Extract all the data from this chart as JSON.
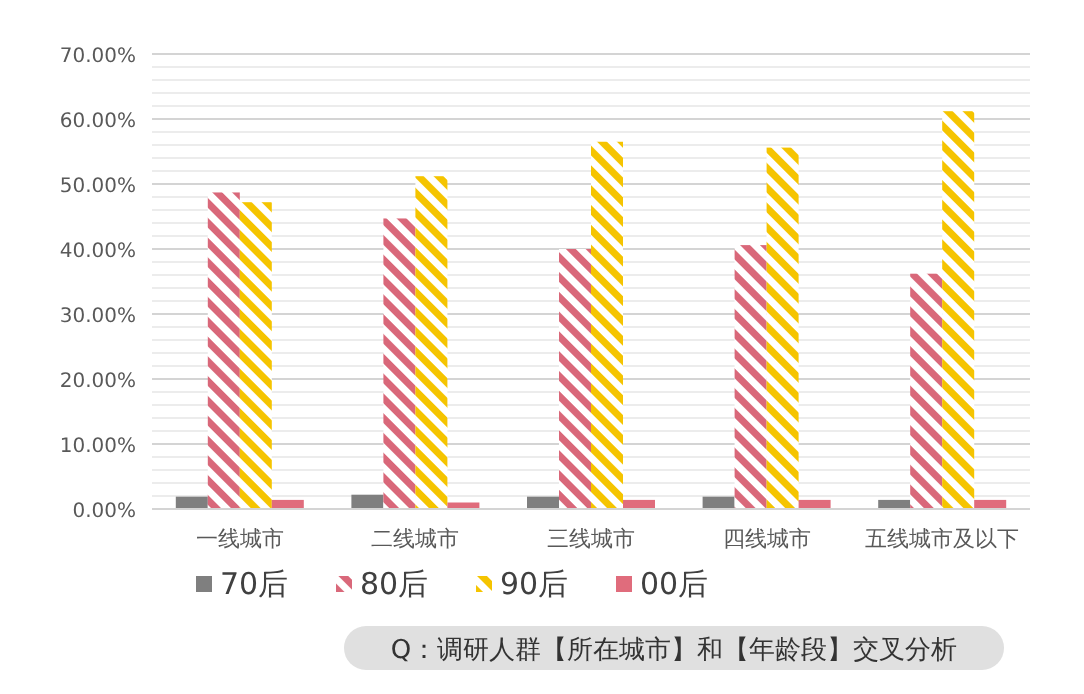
{
  "chart_data": {
    "type": "bar",
    "categories": [
      "一线城市",
      "二线城市",
      "三线城市",
      "四线城市",
      "五线城市及以下"
    ],
    "series": [
      {
        "name": "70后",
        "color": "#7f7f7f",
        "values": [
          1.9,
          2.2,
          1.9,
          1.9,
          1.4
        ]
      },
      {
        "name": "80后",
        "color": "#d9687a",
        "values": [
          48.7,
          44.7,
          40.0,
          40.6,
          36.2
        ]
      },
      {
        "name": "90后",
        "color": "#f5c400",
        "values": [
          47.2,
          51.2,
          56.5,
          55.6,
          61.2
        ]
      },
      {
        "name": "00后",
        "color": "#e06c7c",
        "values": [
          1.4,
          1.0,
          1.4,
          1.4,
          1.4
        ]
      }
    ],
    "ylim": [
      0,
      70
    ],
    "yticks": [
      {
        "value": 0,
        "label": "0.00%"
      },
      {
        "value": 10,
        "label": "10.00%"
      },
      {
        "value": 20,
        "label": "20.00%"
      },
      {
        "value": 30,
        "label": "30.00%"
      },
      {
        "value": 40,
        "label": "40.00%"
      },
      {
        "value": 50,
        "label": "50.00%"
      },
      {
        "value": 60,
        "label": "60.00%"
      },
      {
        "value": 70,
        "label": "70.00%"
      }
    ],
    "grid": "y",
    "legend": "bottom",
    "annotations": [
      "Q：调研人群【所在城市】和【年龄段】交叉分析"
    ]
  }
}
